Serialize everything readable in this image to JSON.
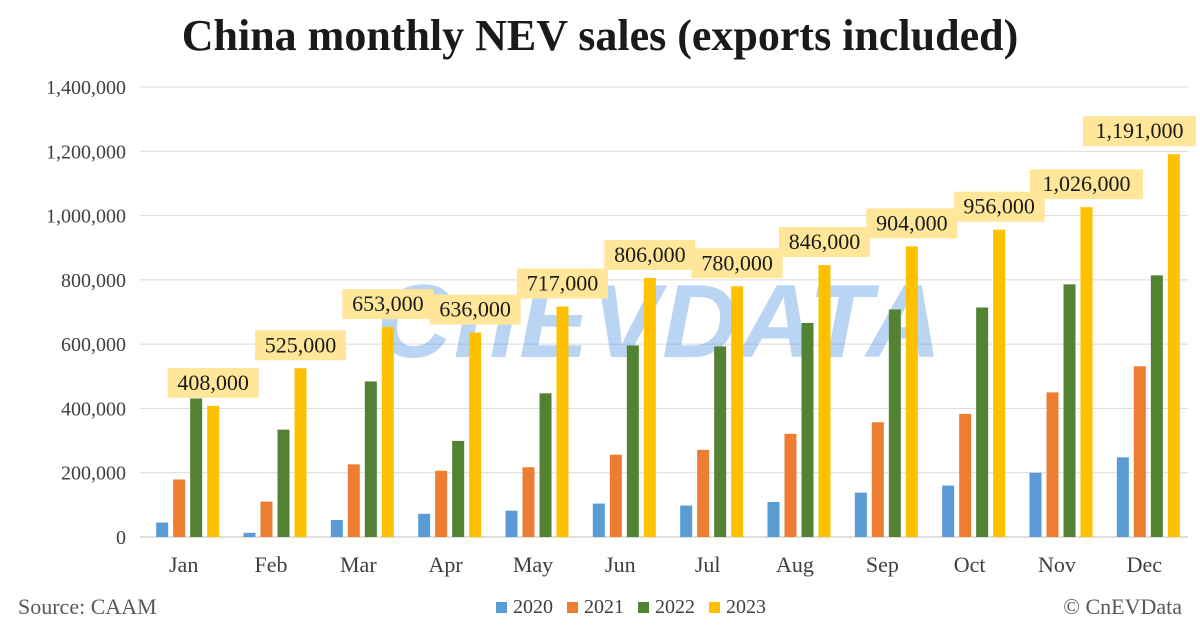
{
  "title": "China monthly NEV sales (exports included)",
  "source": "Source: CAAM",
  "copyright": "© CnEVData",
  "watermark": "CnEVDATA",
  "colors": {
    "2020": "#5b9bd5",
    "2021": "#ed7d31",
    "2022": "#548235",
    "2023": "#ffc000",
    "label_bg": "#ffe699"
  },
  "chart_data": {
    "type": "bar",
    "title": "China monthly NEV sales (exports included)",
    "xlabel": "",
    "ylabel": "",
    "ylim": [
      0,
      1400000
    ],
    "ytick_values": [
      0,
      200000,
      400000,
      600000,
      800000,
      1000000,
      1200000,
      1400000
    ],
    "ytick_labels": [
      "0",
      "200,000",
      "400,000",
      "600,000",
      "800,000",
      "1,000,000",
      "1,200,000",
      "1,400,000"
    ],
    "grid": true,
    "legend_position": "bottom",
    "categories": [
      "Jan",
      "Feb",
      "Mar",
      "Apr",
      "May",
      "Jun",
      "Jul",
      "Aug",
      "Sep",
      "Oct",
      "Nov",
      "Dec"
    ],
    "series": [
      {
        "name": "2020",
        "values": [
          45000,
          13000,
          53000,
          72000,
          82000,
          104000,
          98000,
          109000,
          138000,
          160000,
          200000,
          248000
        ]
      },
      {
        "name": "2021",
        "values": [
          179000,
          110000,
          226000,
          206000,
          217000,
          256000,
          271000,
          321000,
          357000,
          383000,
          450000,
          531000
        ]
      },
      {
        "name": "2022",
        "values": [
          431000,
          334000,
          484000,
          299000,
          447000,
          596000,
          593000,
          666000,
          708000,
          714000,
          786000,
          814000
        ]
      },
      {
        "name": "2023",
        "values": [
          408000,
          525000,
          653000,
          636000,
          717000,
          806000,
          780000,
          846000,
          904000,
          956000,
          1026000,
          1191000
        ]
      }
    ],
    "data_labels": {
      "series": "2023",
      "labels": [
        "408,000",
        "525,000",
        "653,000",
        "636,000",
        "717,000",
        "806,000",
        "780,000",
        "846,000",
        "904,000",
        "956,000",
        "1,026,000",
        "1,191,000"
      ]
    }
  }
}
